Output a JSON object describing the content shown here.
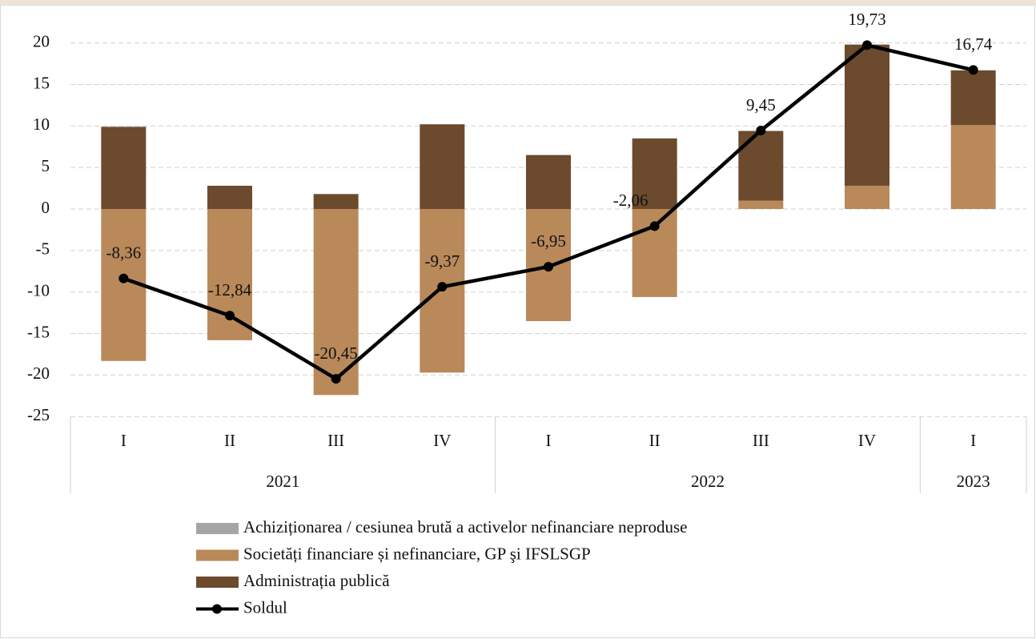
{
  "chart_data": {
    "type": "bar",
    "categories": [
      "I",
      "II",
      "III",
      "IV",
      "I",
      "II",
      "III",
      "IV",
      "I"
    ],
    "groups": [
      {
        "label": "2021",
        "span": 4
      },
      {
        "label": "2022",
        "span": 4
      },
      {
        "label": "2023",
        "span": 1
      }
    ],
    "series": [
      {
        "name": "Achiziționarea / cesiunea brută a activelor nefinanciare neproduse",
        "type": "bar",
        "color": "#a5a5a5",
        "values": [
          0,
          0,
          0,
          0,
          0,
          0,
          0,
          0,
          0
        ]
      },
      {
        "name": "Societăți financiare și nefinanciare, GP şi IFSLSGP",
        "type": "bar",
        "color": "#b9895a",
        "values": [
          -18.3,
          -15.8,
          -22.4,
          -19.7,
          -13.5,
          -10.6,
          1.0,
          2.8,
          10.1
        ]
      },
      {
        "name": "Administrația publică",
        "type": "bar",
        "color": "#6b4a2e",
        "values": [
          9.9,
          2.8,
          1.8,
          10.2,
          6.5,
          8.5,
          8.4,
          17.0,
          6.6
        ]
      },
      {
        "name": "Soldul",
        "type": "line",
        "color": "#000000",
        "values": [
          -8.36,
          -12.84,
          -20.45,
          -9.37,
          -6.95,
          -2.06,
          9.45,
          19.73,
          16.74
        ],
        "value_labels": [
          "-8,36",
          "-12,84",
          "-20,45",
          "-9,37",
          "-6,95",
          "-2,06",
          "9,45",
          "19,73",
          "16,74"
        ]
      }
    ],
    "ylim": [
      -25,
      22
    ],
    "yticks": [
      -25,
      -20,
      -15,
      -10,
      -5,
      0,
      5,
      10,
      15,
      20
    ],
    "grid": true
  }
}
